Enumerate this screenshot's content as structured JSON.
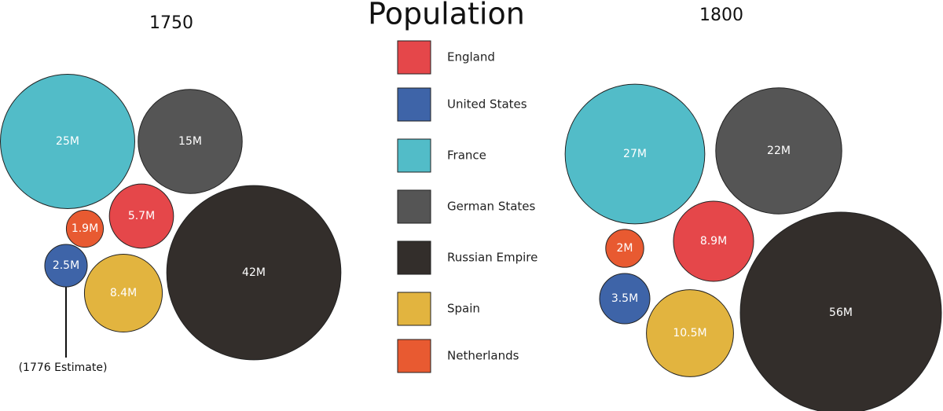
{
  "title": "Population",
  "legend": {
    "names": [
      "England",
      "United States",
      "France",
      "German States",
      "Russian Empire",
      "Spain",
      "Netherlands"
    ],
    "colors": [
      "#e5474a",
      "#3e64a8",
      "#52bcc8",
      "#555555",
      "#332e2b",
      "#e2b43f",
      "#e85a31"
    ]
  },
  "chart_data": [
    {
      "type": "bubble",
      "title": "1750",
      "values": [
        5.7,
        2.5,
        25,
        15,
        42,
        8.4,
        1.9
      ],
      "value_labels": [
        "5.7M",
        "2.5M",
        "25M",
        "15M",
        "42M",
        "8.4M",
        "1.9M"
      ],
      "annotation": "(1776 Estimate)"
    },
    {
      "type": "bubble",
      "title": "1800",
      "values": [
        8.9,
        3.5,
        27,
        22,
        56,
        10.5,
        2
      ],
      "value_labels": [
        "8.9M",
        "3.5M",
        "27M",
        "22M",
        "56M",
        "10.5M",
        "2M"
      ]
    }
  ]
}
